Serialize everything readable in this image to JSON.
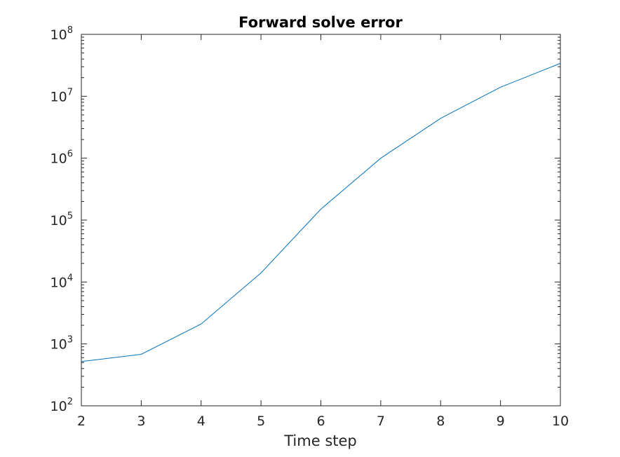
{
  "chart_data": {
    "type": "line",
    "title": "Forward solve error",
    "xlabel": "Time step",
    "ylabel": "",
    "xlim": [
      2,
      10
    ],
    "ylim": [
      100,
      100000000
    ],
    "yscale": "log",
    "grid": false,
    "legend": "none",
    "x_ticks": [
      {
        "value": 2,
        "label": "2"
      },
      {
        "value": 3,
        "label": "3"
      },
      {
        "value": 4,
        "label": "4"
      },
      {
        "value": 5,
        "label": "5"
      },
      {
        "value": 6,
        "label": "6"
      },
      {
        "value": 7,
        "label": "7"
      },
      {
        "value": 8,
        "label": "8"
      },
      {
        "value": 9,
        "label": "9"
      },
      {
        "value": 10,
        "label": "10"
      }
    ],
    "y_ticks": [
      {
        "value": 100,
        "base": "10",
        "exp": "2"
      },
      {
        "value": 1000,
        "base": "10",
        "exp": "3"
      },
      {
        "value": 10000,
        "base": "10",
        "exp": "4"
      },
      {
        "value": 100000,
        "base": "10",
        "exp": "5"
      },
      {
        "value": 1000000,
        "base": "10",
        "exp": "6"
      },
      {
        "value": 10000000,
        "base": "10",
        "exp": "7"
      },
      {
        "value": 100000000,
        "base": "10",
        "exp": "8"
      }
    ],
    "series": [
      {
        "color": "#0072bd",
        "x": [
          2,
          3,
          4,
          5,
          6,
          7,
          8,
          9,
          10
        ],
        "y": [
          520,
          680,
          2100,
          14000,
          150000,
          1000000,
          4400000,
          14000000,
          34000000
        ]
      }
    ]
  }
}
